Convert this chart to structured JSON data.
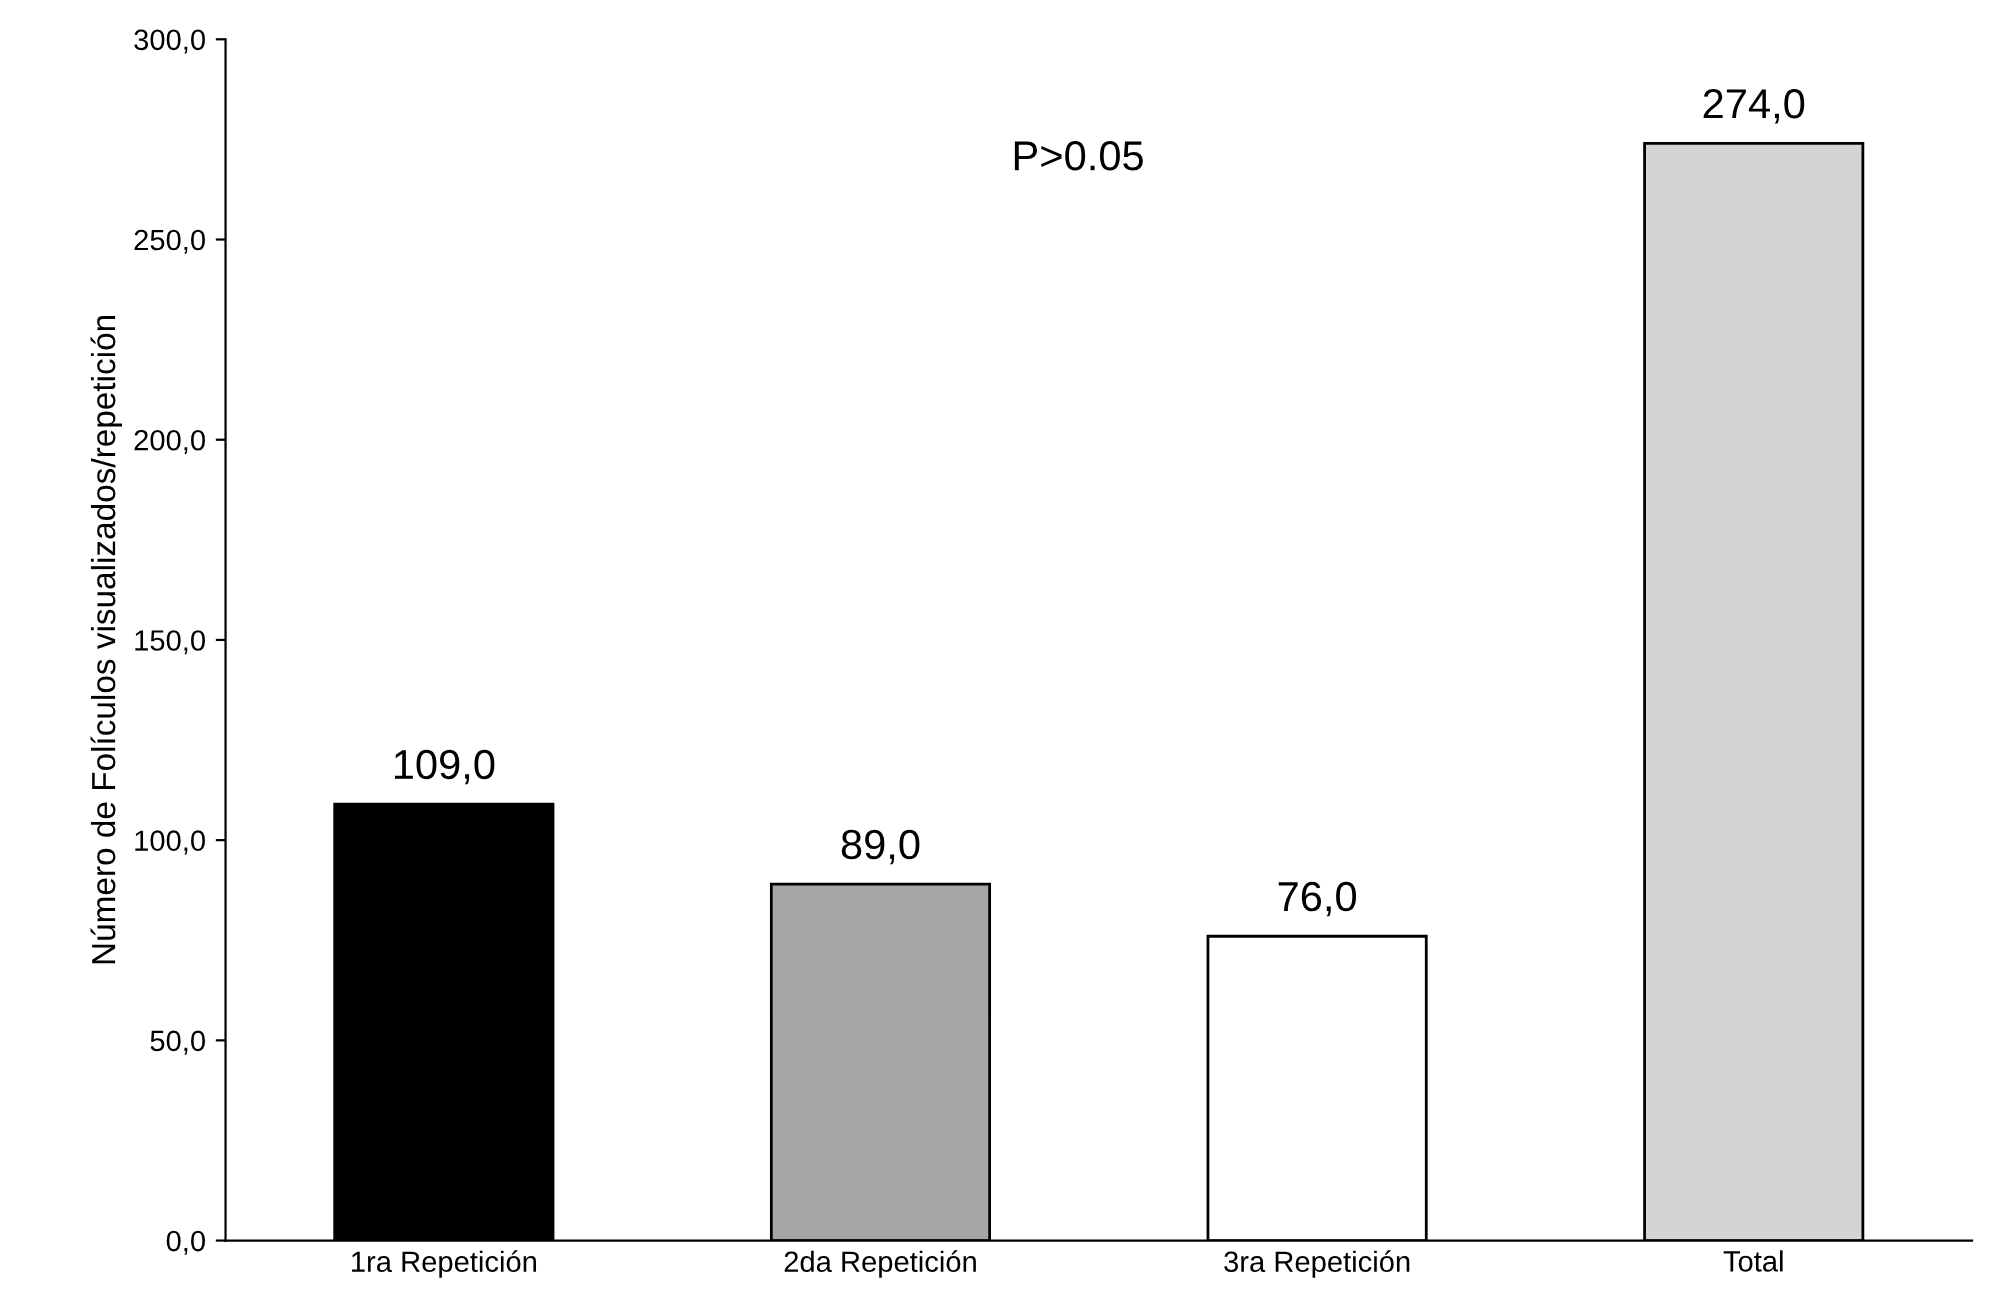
{
  "chart_data": {
    "type": "bar",
    "ylabel": "Número de Folículos visualizados/repetición",
    "categories": [
      "1ra Repetición",
      "2da Repetición",
      "3ra Repetición",
      "Total"
    ],
    "values": [
      109,
      89,
      76,
      274
    ],
    "colors": [
      "#000000",
      "#a6a6a6",
      "#ffffff",
      "#d4d4d4"
    ],
    "value_labels": [
      "109,0",
      "89,0",
      "76,0",
      "274,0"
    ],
    "ylim": [
      0,
      300
    ],
    "yticks": [
      {
        "value": 0,
        "label": "0,0"
      },
      {
        "value": 50,
        "label": "50,0"
      },
      {
        "value": 100,
        "label": "100,0"
      },
      {
        "value": 150,
        "label": "150,0"
      },
      {
        "value": 200,
        "label": "200,0"
      },
      {
        "value": 250,
        "label": "250,0"
      },
      {
        "value": 300,
        "label": "300,0"
      }
    ],
    "annotations": [
      "P>0.05"
    ],
    "grid": false
  }
}
